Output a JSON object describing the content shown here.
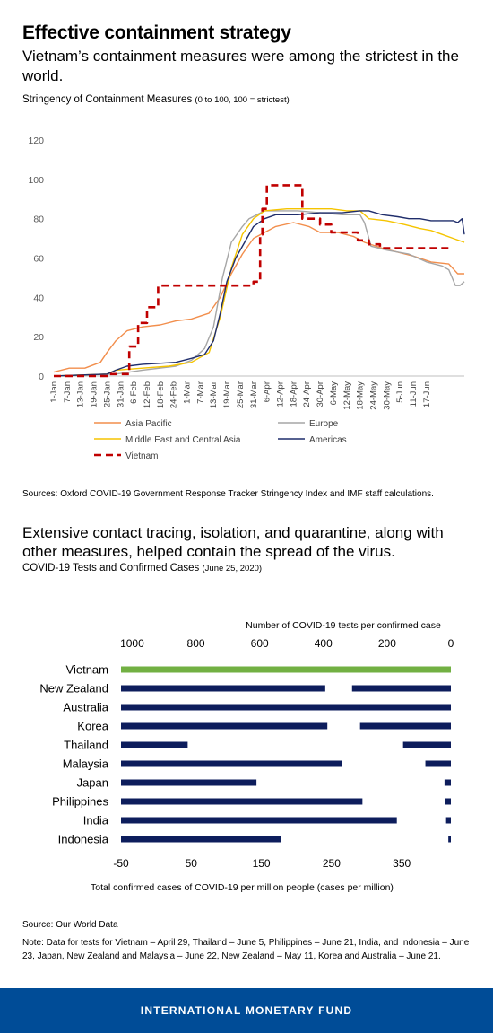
{
  "header": {
    "title": "Effective containment strategy",
    "subtitle": "Vietnam’s containment measures were among the strictest in the world."
  },
  "chart1": {
    "label_main": "Stringency of Containment Measures",
    "label_small": "(0 to 100, 100 = strictest)",
    "sources": "Sources: Oxford COVID-19 Government Response Tracker Stringency Index and IMF staff calculations."
  },
  "section2": {
    "subtitle": "Extensive contact tracing, isolation, and quarantine, along with other measures, helped contain the spread of the virus.",
    "label_main": "COVID-19 Tests and Confirmed Cases",
    "label_small": "(June 25, 2020)",
    "source": "Source: Our World Data",
    "note": "Note: Data for tests for Vietnam – April 29, Thailand – June 5, Philippines – June 21, India, and Indonesia – June 23, Japan, New Zealand and Malaysia – June 22, New Zealand – May 11, Korea and Australia – June 21."
  },
  "footer": {
    "org": "INTERNATIONAL MONETARY FUND"
  },
  "chart_data": [
    {
      "type": "line",
      "ylim": [
        0,
        120
      ],
      "yticks": [
        0,
        20,
        40,
        60,
        80,
        100,
        120
      ],
      "x_ticks": [
        "1-Jan",
        "7-Jan",
        "13-Jan",
        "19-Jan",
        "25-Jan",
        "31-Jan",
        "6-Feb",
        "12-Feb",
        "18-Feb",
        "24-Feb",
        "1-Mar",
        "7-Mar",
        "13-Mar",
        "19-Mar",
        "25-Mar",
        "31-Mar",
        "6-Apr",
        "12-Apr",
        "18-Apr",
        "24-Apr",
        "30-Apr",
        "6-May",
        "12-May",
        "18-May",
        "24-May",
        "30-May",
        "5-Jun",
        "11-Jun",
        "17-Jun"
      ],
      "legend_placement": "bottom",
      "series": [
        {
          "name": "Asia Pacific",
          "color": "#f28e4c",
          "dash": false,
          "points": [
            [
              0,
              2
            ],
            [
              7,
              4
            ],
            [
              14,
              4
            ],
            [
              21,
              7
            ],
            [
              24,
              12
            ],
            [
              28,
              18
            ],
            [
              33,
              23
            ],
            [
              40,
              25
            ],
            [
              48,
              26
            ],
            [
              55,
              28
            ],
            [
              62,
              29
            ],
            [
              70,
              32
            ],
            [
              75,
              40
            ],
            [
              80,
              52
            ],
            [
              85,
              62
            ],
            [
              90,
              70
            ],
            [
              100,
              76
            ],
            [
              108,
              78
            ],
            [
              115,
              76
            ],
            [
              120,
              73
            ],
            [
              128,
              73
            ],
            [
              135,
              71
            ],
            [
              140,
              68
            ],
            [
              148,
              65
            ],
            [
              155,
              63
            ],
            [
              162,
              61
            ],
            [
              170,
              58
            ],
            [
              178,
              57
            ],
            [
              182,
              52
            ],
            [
              185,
              52
            ]
          ]
        },
        {
          "name": "Europe",
          "color": "#a6a6a6",
          "dash": false,
          "points": [
            [
              0,
              0
            ],
            [
              28,
              1
            ],
            [
              40,
              3
            ],
            [
              55,
              5
            ],
            [
              62,
              8
            ],
            [
              68,
              14
            ],
            [
              72,
              25
            ],
            [
              76,
              50
            ],
            [
              80,
              68
            ],
            [
              85,
              76
            ],
            [
              88,
              80
            ],
            [
              95,
              84
            ],
            [
              110,
              84
            ],
            [
              120,
              83
            ],
            [
              130,
              82
            ],
            [
              138,
              82
            ],
            [
              140,
              78
            ],
            [
              143,
              66
            ],
            [
              150,
              64
            ],
            [
              160,
              62
            ],
            [
              168,
              58
            ],
            [
              175,
              56
            ],
            [
              178,
              54
            ],
            [
              181,
              46
            ],
            [
              183,
              46
            ],
            [
              185,
              48
            ]
          ]
        },
        {
          "name": "Middle East and Central Asia",
          "color": "#f5c400",
          "dash": false,
          "points": [
            [
              0,
              0
            ],
            [
              24,
              1
            ],
            [
              28,
              3
            ],
            [
              40,
              4
            ],
            [
              52,
              5
            ],
            [
              62,
              7
            ],
            [
              70,
              12
            ],
            [
              75,
              30
            ],
            [
              80,
              55
            ],
            [
              85,
              72
            ],
            [
              90,
              80
            ],
            [
              95,
              84
            ],
            [
              105,
              85
            ],
            [
              115,
              85
            ],
            [
              125,
              85
            ],
            [
              132,
              84
            ],
            [
              138,
              84
            ],
            [
              142,
              80
            ],
            [
              150,
              79
            ],
            [
              158,
              77
            ],
            [
              165,
              75
            ],
            [
              170,
              74
            ],
            [
              175,
              72
            ],
            [
              180,
              70
            ],
            [
              185,
              68
            ]
          ]
        },
        {
          "name": "Americas",
          "color": "#1f2d6b",
          "dash": false,
          "points": [
            [
              0,
              0
            ],
            [
              24,
              1
            ],
            [
              28,
              3
            ],
            [
              33,
              5
            ],
            [
              40,
              6
            ],
            [
              55,
              7
            ],
            [
              62,
              9
            ],
            [
              68,
              11
            ],
            [
              72,
              18
            ],
            [
              75,
              32
            ],
            [
              78,
              48
            ],
            [
              82,
              60
            ],
            [
              86,
              68
            ],
            [
              90,
              76
            ],
            [
              95,
              80
            ],
            [
              100,
              82
            ],
            [
              110,
              82
            ],
            [
              120,
              83
            ],
            [
              130,
              83
            ],
            [
              138,
              84
            ],
            [
              142,
              84
            ],
            [
              148,
              82
            ],
            [
              155,
              81
            ],
            [
              160,
              80
            ],
            [
              165,
              80
            ],
            [
              170,
              79
            ],
            [
              176,
              79
            ],
            [
              180,
              79
            ],
            [
              182,
              78
            ],
            [
              184,
              80
            ],
            [
              185,
              72
            ]
          ]
        },
        {
          "name": "Vietnam",
          "color": "#c00000",
          "dash": true,
          "points": [
            [
              0,
              0
            ],
            [
              25,
              0
            ],
            [
              25,
              1
            ],
            [
              34,
              1
            ],
            [
              34,
              15
            ],
            [
              38,
              15
            ],
            [
              38,
              27
            ],
            [
              42,
              27
            ],
            [
              42,
              35
            ],
            [
              47,
              35
            ],
            [
              47,
              46
            ],
            [
              90,
              46
            ],
            [
              90,
              48
            ],
            [
              93,
              48
            ],
            [
              93,
              72
            ],
            [
              94,
              72
            ],
            [
              94,
              85
            ],
            [
              96,
              85
            ],
            [
              96,
              97
            ],
            [
              112,
              97
            ],
            [
              112,
              80
            ],
            [
              120,
              80
            ],
            [
              120,
              77
            ],
            [
              125,
              77
            ],
            [
              125,
              73
            ],
            [
              137,
              73
            ],
            [
              137,
              69
            ],
            [
              142,
              69
            ],
            [
              142,
              67
            ],
            [
              147,
              67
            ],
            [
              147,
              65
            ],
            [
              178,
              65
            ]
          ]
        }
      ]
    },
    {
      "type": "bar",
      "orientation": "horizontal",
      "categories": [
        "Vietnam",
        "New Zealand",
        "Australia",
        "Korea",
        "Thailand",
        "Malaysia",
        "Japan",
        "Philippines",
        "India",
        "Indonesia"
      ],
      "top_axis": {
        "label": "Number of COVID-19 tests per confirmed case",
        "ticks": [
          1000,
          800,
          600,
          400,
          200,
          0
        ],
        "reversed": true,
        "range": [
          0,
          1035
        ],
        "values": [
          1035,
          310,
          285,
          285,
          150,
          80,
          20,
          18,
          15,
          8
        ]
      },
      "bottom_axis": {
        "label": "Total confirmed cases of COVID-19 per million people (cases per million)",
        "ticks": [
          -50,
          50,
          150,
          250,
          350
        ],
        "range": [
          -50,
          420
        ],
        "values": [
          1,
          241,
          294,
          244,
          45,
          265,
          143,
          294,
          343,
          178
        ]
      },
      "series": [
        {
          "name": "Total confirmed cases per million",
          "color": "#0d1d5c"
        },
        {
          "name": "Tests per confirmed case",
          "color": "#0d1d5c",
          "highlight_color": "#72b043"
        }
      ],
      "highlight_bar_color": {
        "Vietnam_cases": "#c00000",
        "Vietnam_tests": "#72b043"
      }
    }
  ]
}
